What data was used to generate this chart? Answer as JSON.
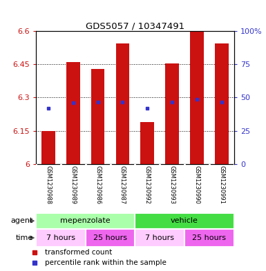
{
  "title": "GDS5057 / 10347491",
  "samples": [
    "GSM1230988",
    "GSM1230989",
    "GSM1230986",
    "GSM1230987",
    "GSM1230992",
    "GSM1230993",
    "GSM1230990",
    "GSM1230991"
  ],
  "red_values": [
    6.15,
    6.46,
    6.43,
    6.545,
    6.19,
    6.455,
    6.6,
    6.545
  ],
  "blue_values": [
    6.253,
    6.278,
    6.279,
    6.279,
    6.253,
    6.279,
    6.291,
    6.279
  ],
  "ylim_left": [
    6.0,
    6.6
  ],
  "ylim_right": [
    0,
    100
  ],
  "yticks_left": [
    6.0,
    6.15,
    6.3,
    6.45,
    6.6
  ],
  "yticks_right": [
    0,
    25,
    50,
    75,
    100
  ],
  "ytick_labels_left": [
    "6",
    "6.15",
    "6.3",
    "6.45",
    "6.6"
  ],
  "ytick_labels_right": [
    "0",
    "25",
    "50",
    "75",
    "100%"
  ],
  "bar_color": "#cc1111",
  "blue_color": "#3333cc",
  "bar_width": 0.55,
  "agent_groups": [
    {
      "label": "mepenzolate",
      "start": 0,
      "end": 4,
      "color": "#aaffaa"
    },
    {
      "label": "vehicle",
      "start": 4,
      "end": 8,
      "color": "#44dd44"
    }
  ],
  "time_groups": [
    {
      "label": "7 hours",
      "start": 0,
      "end": 2,
      "color": "#ffccff"
    },
    {
      "label": "25 hours",
      "start": 2,
      "end": 4,
      "color": "#ee66ee"
    },
    {
      "label": "7 hours",
      "start": 4,
      "end": 6,
      "color": "#ffccff"
    },
    {
      "label": "25 hours",
      "start": 6,
      "end": 8,
      "color": "#ee66ee"
    }
  ],
  "legend_items": [
    {
      "label": "  transformed count",
      "color": "#cc1111"
    },
    {
      "label": "  percentile rank within the sample",
      "color": "#3333cc"
    }
  ],
  "agent_label": "agent",
  "time_label": "time",
  "label_bg_color": "#cccccc",
  "chart_bg": "#ffffff"
}
